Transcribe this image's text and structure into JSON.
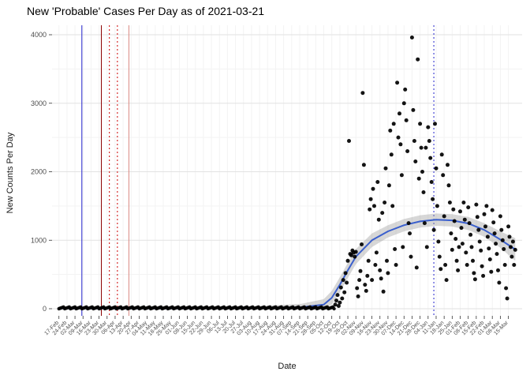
{
  "chart_data": {
    "type": "scatter",
    "title": "New 'Probable' Cases Per Day as of 2021-03-21",
    "xlabel": "Date",
    "ylabel": "New Counts Per Day",
    "x_start": "2020-02-17",
    "x_end": "2021-03-21",
    "ylim": [
      0,
      4100
    ],
    "y_ticks": [
      0,
      1000,
      2000,
      3000,
      4000
    ],
    "x_tick_interval_days": 7,
    "x_tick_labels": [
      "17-Feb",
      "24-Feb",
      "02-Mar",
      "09-Mar",
      "16-Mar",
      "23-Mar",
      "30-Mar",
      "06-Apr",
      "13-Apr",
      "20-Apr",
      "27-Apr",
      "04-May",
      "11-May",
      "18-May",
      "25-May",
      "01-Jun",
      "08-Jun",
      "15-Jun",
      "22-Jun",
      "29-Jun",
      "06-Jul",
      "13-Jul",
      "20-Jul",
      "27-Jul",
      "03-Aug",
      "10-Aug",
      "17-Aug",
      "24-Aug",
      "31-Aug",
      "07-Sep",
      "14-Sep",
      "21-Sep",
      "28-Sep",
      "05-Oct",
      "12-Oct",
      "19-Oct",
      "26-Oct",
      "02-Nov",
      "09-Nov",
      "16-Nov",
      "23-Nov",
      "30-Nov",
      "07-Dec",
      "14-Dec",
      "21-Dec",
      "28-Dec",
      "04-Jan",
      "11-Jan",
      "18-Jan",
      "25-Jan",
      "01-Feb",
      "08-Feb",
      "15-Feb",
      "22-Feb",
      "01-Mar",
      "08-Mar",
      "15-Mar"
    ],
    "colors": {
      "point": "#000000",
      "smooth": "#3A5FCD",
      "ribbon": "#9B9B9B",
      "grid_major": "#E2E2E2",
      "grid_minor": "#F3F3F3",
      "axis_text": "#4D4D4D",
      "vline_blue": "#2222CC",
      "vline_darkred": "#8B0000",
      "vline_red": "#CC0000",
      "vline_pink": "#D98880"
    },
    "baseline": {
      "start": "2020-02-17",
      "end": "2020-10-14",
      "min": 0,
      "max": 25,
      "note": "dense near-zero daily probable counts"
    },
    "vlines": [
      {
        "date": "2020-03-08",
        "color": "#2222CC",
        "style": "solid"
      },
      {
        "date": "2020-03-25",
        "color": "#8B0000",
        "style": "solid"
      },
      {
        "date": "2020-04-01",
        "color": "#CC0000",
        "style": "dotted"
      },
      {
        "date": "2020-04-08",
        "color": "#CC0000",
        "style": "dotted"
      },
      {
        "date": "2020-04-18",
        "color": "#D98880",
        "style": "solid"
      },
      {
        "date": "2021-01-09",
        "color": "#2222CC",
        "style": "dotted"
      }
    ],
    "smooth": [
      [
        "2020-02-17",
        5,
        0,
        30
      ],
      [
        "2020-04-01",
        5,
        0,
        25
      ],
      [
        "2020-06-01",
        5,
        0,
        25
      ],
      [
        "2020-08-01",
        8,
        0,
        35
      ],
      [
        "2020-09-15",
        20,
        0,
        70
      ],
      [
        "2020-10-05",
        60,
        0,
        140
      ],
      [
        "2020-10-12",
        160,
        60,
        260
      ],
      [
        "2020-10-19",
        350,
        240,
        460
      ],
      [
        "2020-10-26",
        560,
        450,
        670
      ],
      [
        "2020-11-02",
        760,
        650,
        870
      ],
      [
        "2020-11-16",
        1000,
        900,
        1100
      ],
      [
        "2020-11-30",
        1130,
        1040,
        1220
      ],
      [
        "2020-12-14",
        1220,
        1130,
        1310
      ],
      [
        "2020-12-28",
        1275,
        1185,
        1365
      ],
      [
        "2021-01-11",
        1300,
        1210,
        1390
      ],
      [
        "2021-01-25",
        1290,
        1200,
        1380
      ],
      [
        "2021-02-08",
        1245,
        1150,
        1340
      ],
      [
        "2021-02-22",
        1150,
        1050,
        1250
      ],
      [
        "2021-03-08",
        1010,
        890,
        1130
      ],
      [
        "2021-03-21",
        865,
        700,
        1030
      ]
    ],
    "points": [
      [
        "2020-10-15",
        60
      ],
      [
        "2020-10-16",
        120
      ],
      [
        "2020-10-17",
        200
      ],
      [
        "2020-10-18",
        40
      ],
      [
        "2020-10-19",
        90
      ],
      [
        "2020-10-20",
        310
      ],
      [
        "2020-10-21",
        150
      ],
      [
        "2020-10-22",
        420
      ],
      [
        "2020-10-23",
        240
      ],
      [
        "2020-10-24",
        520
      ],
      [
        "2020-10-25",
        380
      ],
      [
        "2020-10-26",
        700
      ],
      [
        "2020-10-27",
        2450
      ],
      [
        "2020-10-28",
        800
      ],
      [
        "2020-10-29",
        780
      ],
      [
        "2020-10-30",
        850
      ],
      [
        "2020-10-31",
        820
      ],
      [
        "2020-11-01",
        760
      ],
      [
        "2020-11-02",
        830
      ],
      [
        "2020-11-03",
        300
      ],
      [
        "2020-11-04",
        180
      ],
      [
        "2020-11-05",
        420
      ],
      [
        "2020-11-06",
        550
      ],
      [
        "2020-11-07",
        940
      ],
      [
        "2020-11-08",
        3150
      ],
      [
        "2020-11-09",
        2100
      ],
      [
        "2020-11-10",
        350
      ],
      [
        "2020-11-11",
        260
      ],
      [
        "2020-11-12",
        480
      ],
      [
        "2020-11-13",
        700
      ],
      [
        "2020-11-14",
        1450
      ],
      [
        "2020-11-15",
        1600
      ],
      [
        "2020-11-16",
        420
      ],
      [
        "2020-11-17",
        1750
      ],
      [
        "2020-11-18",
        1500
      ],
      [
        "2020-11-19",
        640
      ],
      [
        "2020-11-20",
        820
      ],
      [
        "2020-11-21",
        1850
      ],
      [
        "2020-11-22",
        1300
      ],
      [
        "2020-11-23",
        560
      ],
      [
        "2020-11-24",
        440
      ],
      [
        "2020-11-25",
        1400
      ],
      [
        "2020-11-26",
        250
      ],
      [
        "2020-11-27",
        1550
      ],
      [
        "2020-11-28",
        2050
      ],
      [
        "2020-11-29",
        700
      ],
      [
        "2020-11-30",
        520
      ],
      [
        "2020-12-01",
        1800
      ],
      [
        "2020-12-02",
        2600
      ],
      [
        "2020-12-03",
        2250
      ],
      [
        "2020-12-04",
        1500
      ],
      [
        "2020-12-05",
        2700
      ],
      [
        "2020-12-06",
        870
      ],
      [
        "2020-12-07",
        640
      ],
      [
        "2020-12-08",
        3300
      ],
      [
        "2020-12-09",
        2500
      ],
      [
        "2020-12-10",
        2850
      ],
      [
        "2020-12-11",
        2400
      ],
      [
        "2020-12-12",
        1950
      ],
      [
        "2020-12-13",
        900
      ],
      [
        "2020-12-14",
        3000
      ],
      [
        "2020-12-15",
        3200
      ],
      [
        "2020-12-16",
        2750
      ],
      [
        "2020-12-17",
        2300
      ],
      [
        "2020-12-18",
        1250
      ],
      [
        "2020-12-19",
        1100
      ],
      [
        "2020-12-20",
        760
      ],
      [
        "2020-12-21",
        3960
      ],
      [
        "2020-12-22",
        2900
      ],
      [
        "2020-12-23",
        2450
      ],
      [
        "2020-12-24",
        2150
      ],
      [
        "2020-12-25",
        600
      ],
      [
        "2020-12-26",
        3640
      ],
      [
        "2020-12-27",
        1900
      ],
      [
        "2020-12-28",
        2700
      ],
      [
        "2020-12-29",
        2350
      ],
      [
        "2020-12-30",
        2000
      ],
      [
        "2020-12-31",
        1700
      ],
      [
        "2021-01-01",
        1250
      ],
      [
        "2021-01-02",
        2350
      ],
      [
        "2021-01-03",
        900
      ],
      [
        "2021-01-04",
        2650
      ],
      [
        "2021-01-05",
        2450
      ],
      [
        "2021-01-06",
        2200
      ],
      [
        "2021-01-07",
        1850
      ],
      [
        "2021-01-08",
        1600
      ],
      [
        "2021-01-09",
        1150
      ],
      [
        "2021-01-10",
        2700
      ],
      [
        "2021-01-11",
        2050
      ],
      [
        "2021-01-12",
        1500
      ],
      [
        "2021-01-13",
        980
      ],
      [
        "2021-01-14",
        760
      ],
      [
        "2021-01-15",
        580
      ],
      [
        "2021-01-16",
        2250
      ],
      [
        "2021-01-17",
        1950
      ],
      [
        "2021-01-18",
        1350
      ],
      [
        "2021-01-19",
        640
      ],
      [
        "2021-01-20",
        420
      ],
      [
        "2021-01-21",
        2100
      ],
      [
        "2021-01-22",
        1800
      ],
      [
        "2021-01-23",
        1550
      ],
      [
        "2021-01-24",
        1100
      ],
      [
        "2021-01-25",
        860
      ],
      [
        "2021-01-26",
        1450
      ],
      [
        "2021-01-27",
        1280
      ],
      [
        "2021-01-28",
        1020
      ],
      [
        "2021-01-29",
        700
      ],
      [
        "2021-01-30",
        560
      ],
      [
        "2021-01-31",
        900
      ],
      [
        "2021-02-01",
        1420
      ],
      [
        "2021-02-02",
        1180
      ],
      [
        "2021-02-03",
        950
      ],
      [
        "2021-02-04",
        1550
      ],
      [
        "2021-02-05",
        1300
      ],
      [
        "2021-02-06",
        820
      ],
      [
        "2021-02-07",
        640
      ],
      [
        "2021-02-08",
        1480
      ],
      [
        "2021-02-09",
        1250
      ],
      [
        "2021-02-10",
        1080
      ],
      [
        "2021-02-11",
        900
      ],
      [
        "2021-02-12",
        700
      ],
      [
        "2021-02-13",
        520
      ],
      [
        "2021-02-14",
        430
      ],
      [
        "2021-02-15",
        1520
      ],
      [
        "2021-02-16",
        1340
      ],
      [
        "2021-02-17",
        1150
      ],
      [
        "2021-02-18",
        980
      ],
      [
        "2021-02-19",
        850
      ],
      [
        "2021-02-20",
        620
      ],
      [
        "2021-02-21",
        480
      ],
      [
        "2021-02-22",
        1380
      ],
      [
        "2021-02-23",
        1200
      ],
      [
        "2021-02-24",
        1500
      ],
      [
        "2021-02-25",
        1050
      ],
      [
        "2021-02-26",
        880
      ],
      [
        "2021-02-27",
        720
      ],
      [
        "2021-02-28",
        540
      ],
      [
        "2021-03-01",
        1440
      ],
      [
        "2021-03-02",
        1260
      ],
      [
        "2021-03-03",
        1100
      ],
      [
        "2021-03-04",
        950
      ],
      [
        "2021-03-05",
        800
      ],
      [
        "2021-03-06",
        560
      ],
      [
        "2021-03-07",
        380
      ],
      [
        "2021-03-08",
        1350
      ],
      [
        "2021-03-09",
        1150
      ],
      [
        "2021-03-10",
        1000
      ],
      [
        "2021-03-11",
        870
      ],
      [
        "2021-03-12",
        640
      ],
      [
        "2021-03-13",
        300
      ],
      [
        "2021-03-14",
        150
      ],
      [
        "2021-03-15",
        1200
      ],
      [
        "2021-03-16",
        1050
      ],
      [
        "2021-03-17",
        900
      ],
      [
        "2021-03-18",
        760
      ],
      [
        "2021-03-19",
        980
      ],
      [
        "2021-03-20",
        640
      ],
      [
        "2021-03-21",
        860
      ]
    ]
  }
}
